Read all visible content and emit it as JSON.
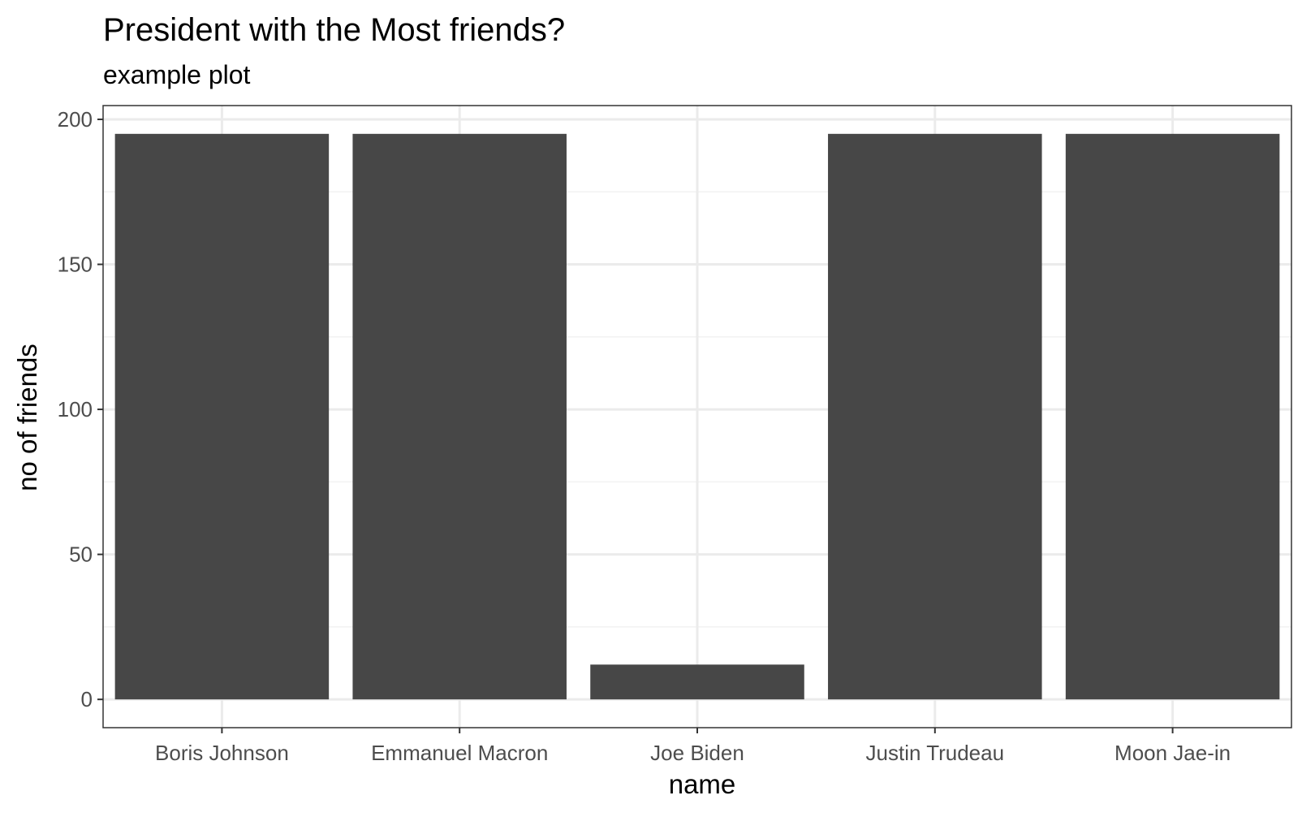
{
  "chart_data": {
    "type": "bar",
    "title": "President with the Most friends?",
    "subtitle": "example plot",
    "xlabel": "name",
    "ylabel": "no of friends",
    "categories": [
      "Boris Johnson",
      "Emmanuel Macron",
      "Joe Biden",
      "Justin Trudeau",
      "Moon Jae-in"
    ],
    "values": [
      195,
      195,
      12,
      195,
      195
    ],
    "ylim": [
      -9.75,
      204.75
    ],
    "yticks": [
      "0",
      "50",
      "100",
      "150",
      "200"
    ],
    "grid": true,
    "legend": "none",
    "theme": "bw",
    "colors": {
      "bar": "#474747",
      "grid_major": "#ebebeb",
      "grid_minor": "#f2f2f2",
      "panel_border": "#333333",
      "tick": "#333333"
    }
  }
}
